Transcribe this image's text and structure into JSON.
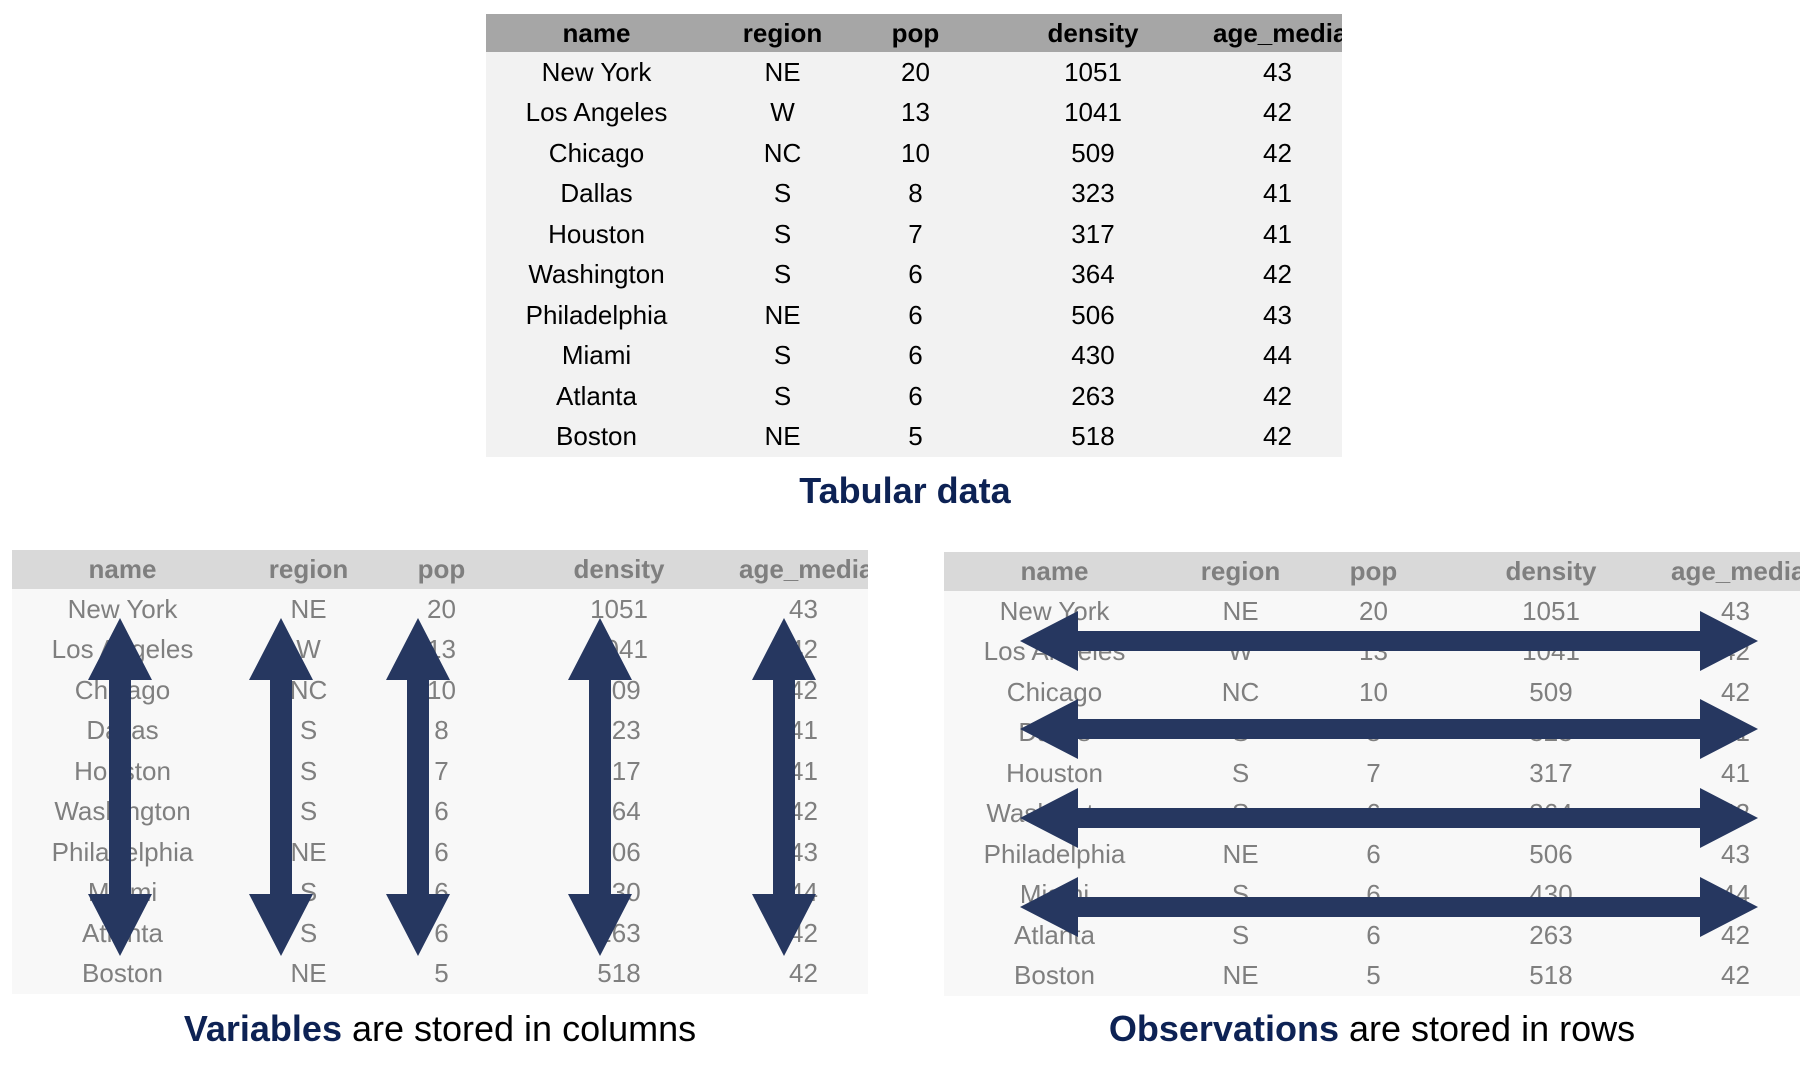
{
  "table": {
    "columns": [
      "name",
      "region",
      "pop",
      "density",
      "age_median"
    ],
    "rows": [
      [
        "New York",
        "NE",
        "20",
        "1051",
        "43"
      ],
      [
        "Los Angeles",
        "W",
        "13",
        "1041",
        "42"
      ],
      [
        "Chicago",
        "NC",
        "10",
        "509",
        "42"
      ],
      [
        "Dallas",
        "S",
        "8",
        "323",
        "41"
      ],
      [
        "Houston",
        "S",
        "7",
        "317",
        "41"
      ],
      [
        "Washington",
        "S",
        "6",
        "364",
        "42"
      ],
      [
        "Philadelphia",
        "NE",
        "6",
        "506",
        "43"
      ],
      [
        "Miami",
        "S",
        "6",
        "430",
        "44"
      ],
      [
        "Atlanta",
        "S",
        "6",
        "263",
        "42"
      ],
      [
        "Boston",
        "NE",
        "5",
        "518",
        "42"
      ]
    ]
  },
  "captions": {
    "main": "Tabular data",
    "left_emphasis": "Variables",
    "left_rest": " are stored in columns",
    "right_emphasis": "Observations",
    "right_rest": " are stored in rows"
  },
  "colors": {
    "arrow": "#263760",
    "caption_emphasis": "#0d2254",
    "header_gray": "#a6a6a6",
    "faded_text": "#7f7f7f"
  }
}
